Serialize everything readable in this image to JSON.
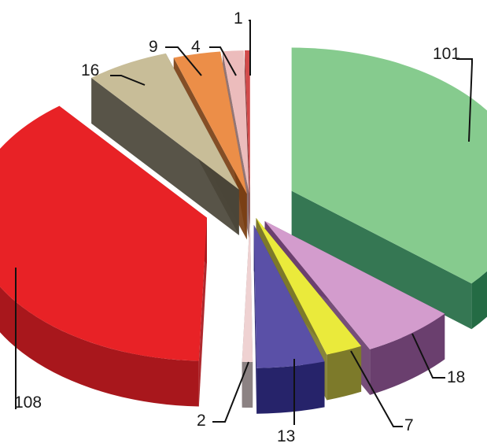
{
  "chart_data": {
    "type": "pie",
    "style": "3d-exploded",
    "title": "",
    "legend": "none",
    "slices": [
      {
        "value": 101,
        "label": "101",
        "top": "#86cb8e",
        "side": "#246b44"
      },
      {
        "value": 18,
        "label": "18",
        "top": "#d39ccd",
        "side": "#6a3f6e"
      },
      {
        "value": 7,
        "label": "7",
        "top": "#eaea3b",
        "side": "#7d7a2a"
      },
      {
        "value": 13,
        "label": "13",
        "top": "#5a50a7",
        "side": "#26236a"
      },
      {
        "value": 2,
        "label": "2",
        "top": "#efd2d2",
        "side": "#8c8283"
      },
      {
        "value": 108,
        "label": "108",
        "top": "#e82226",
        "side": "#a8171c"
      },
      {
        "value": 16,
        "label": "16",
        "top": "#c8bd98",
        "side": "#4a4538"
      },
      {
        "value": 9,
        "label": "9",
        "top": "#ec8e48",
        "side": "#7a3f14"
      },
      {
        "value": 4,
        "label": "4",
        "top": "#ecbcbc",
        "side": "#8a6a6a"
      },
      {
        "value": 1,
        "label": "1",
        "top": "#d24a4a",
        "side": "#7a2a2a"
      }
    ]
  }
}
